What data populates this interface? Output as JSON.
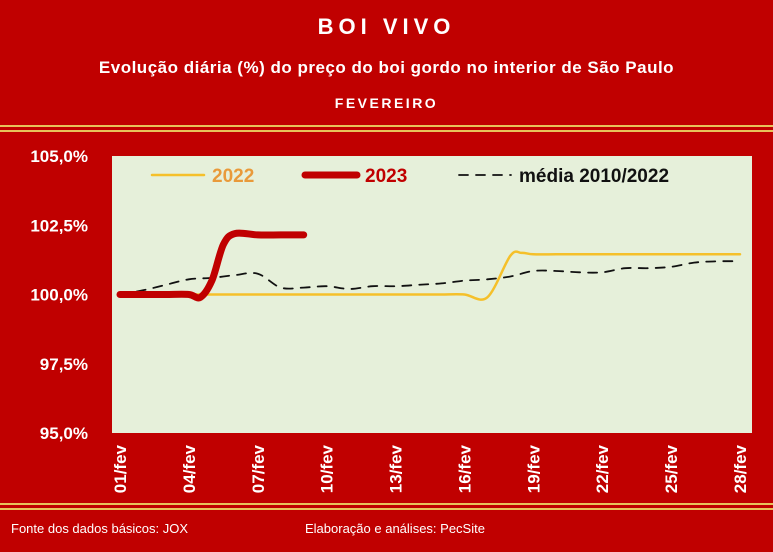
{
  "header": {
    "title": "BOI VIVO",
    "subtitle": "Evolução diária (%) do preço do boi gordo no interior de São Paulo",
    "month": "FEVEREIRO"
  },
  "footer": {
    "source": "Fonte dos dados básicos: JOX",
    "credit": "Elaboração e análises: PecSite"
  },
  "colors": {
    "frame": "#c00000",
    "plot_bg": "#e6f0da",
    "series_2022": "#f5c02a",
    "series_2023": "#c00000",
    "series_media": "#111111",
    "border_gold": "#e8c25a"
  },
  "chart_data": {
    "type": "line",
    "ylim": [
      95,
      105
    ],
    "yticks": [
      "105,0%",
      "102,5%",
      "100,0%",
      "97,5%",
      "95,0%"
    ],
    "ytick_values": [
      105,
      102.5,
      100,
      97.5,
      95
    ],
    "xlim": [
      1,
      28
    ],
    "xticks": [
      "01/fev",
      "04/fev",
      "07/fev",
      "10/fev",
      "13/fev",
      "16/fev",
      "19/fev",
      "22/fev",
      "25/fev",
      "28/fev"
    ],
    "xtick_values": [
      1,
      4,
      7,
      10,
      13,
      16,
      19,
      22,
      25,
      28
    ],
    "legend_position": "top",
    "series": [
      {
        "name": "2022",
        "x": [
          1,
          2,
          3,
          4,
          5,
          6,
          7,
          8,
          9,
          10,
          11,
          12,
          13,
          14,
          15,
          16,
          17,
          18,
          18.5,
          19,
          20,
          21,
          22,
          23,
          24,
          25,
          26,
          27,
          28
        ],
        "values": [
          100,
          100,
          100,
          100,
          100,
          100,
          100,
          100,
          100,
          100,
          100,
          100,
          100,
          100,
          100,
          100,
          99.9,
          101.4,
          101.5,
          101.45,
          101.45,
          101.45,
          101.45,
          101.45,
          101.45,
          101.45,
          101.45,
          101.45,
          101.45
        ]
      },
      {
        "name": "2023",
        "x": [
          1,
          2,
          3,
          4,
          4.5,
          5,
          5.5,
          6,
          7,
          8,
          9
        ],
        "values": [
          100,
          100,
          100,
          100,
          99.9,
          100.5,
          101.8,
          102.2,
          102.15,
          102.15,
          102.15
        ]
      },
      {
        "name": "média 2010/2022",
        "x": [
          1,
          2,
          3,
          4,
          5,
          6,
          7,
          8,
          9,
          10,
          11,
          12,
          13,
          14,
          15,
          16,
          17,
          18,
          19,
          20,
          21,
          22,
          23,
          24,
          25,
          26,
          27,
          28
        ],
        "values": [
          100.0,
          100.15,
          100.35,
          100.55,
          100.6,
          100.7,
          100.75,
          100.25,
          100.25,
          100.3,
          100.2,
          100.3,
          100.3,
          100.35,
          100.4,
          100.5,
          100.55,
          100.65,
          100.85,
          100.85,
          100.8,
          100.8,
          100.95,
          100.95,
          101.0,
          101.15,
          101.2,
          101.2
        ]
      }
    ]
  }
}
